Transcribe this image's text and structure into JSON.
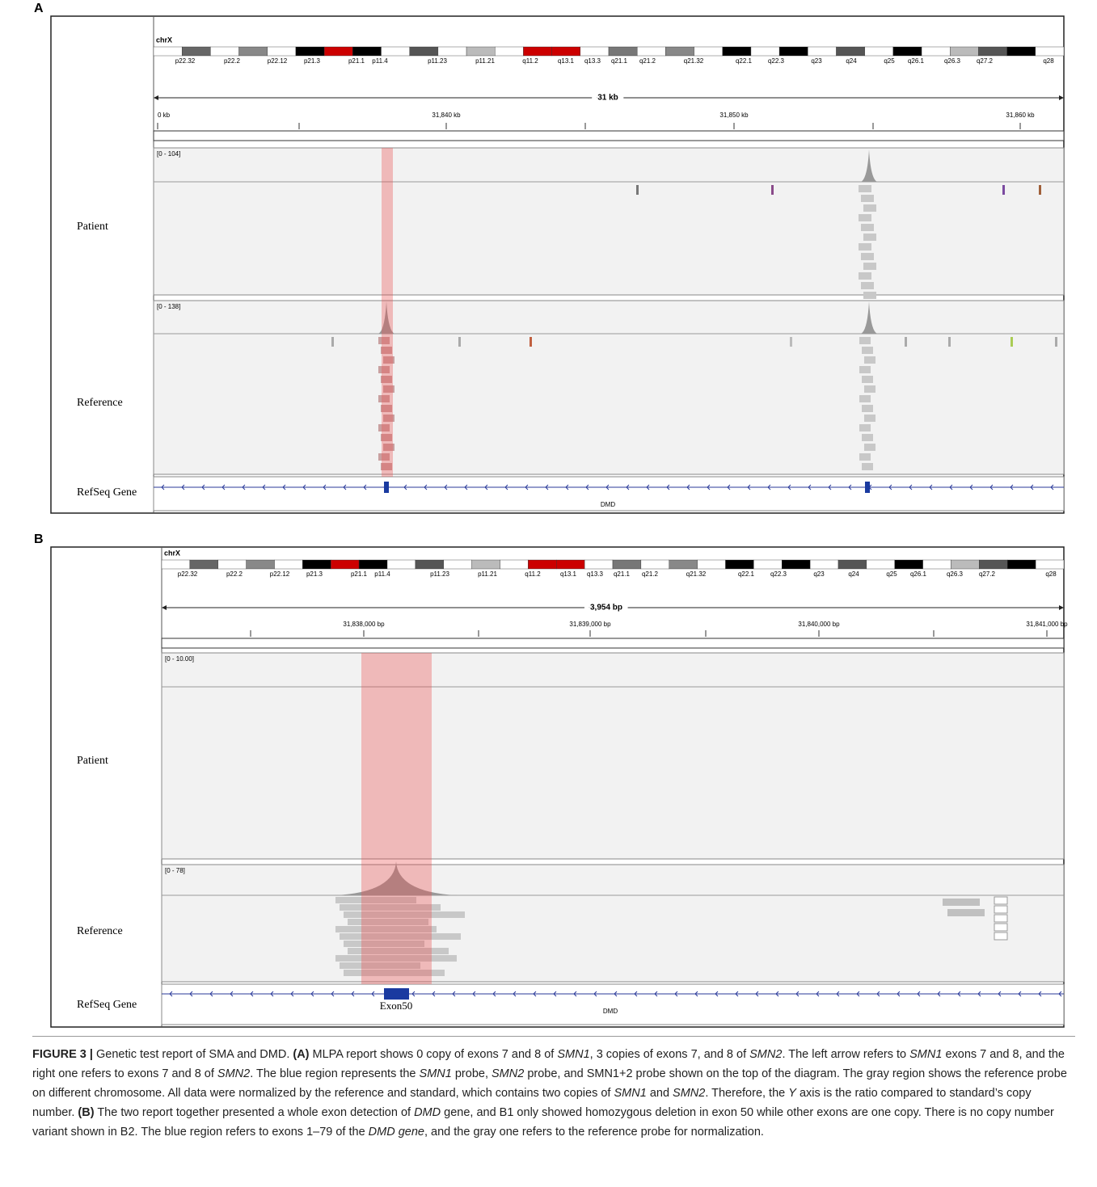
{
  "panels": [
    {
      "label": "A",
      "chromosome": "chrX",
      "bands": [
        "p22.32",
        "p22.2",
        "p22.12",
        "p21.3",
        "p21.1",
        "p11.4",
        "p11.23",
        "p11.21",
        "q11.2",
        "q13.1",
        "q13.3",
        "q21.1",
        "q21.2",
        "q21.32",
        "q22.1",
        "q22.3",
        "q23",
        "q24",
        "q25",
        "q26.1",
        "q26.3",
        "q27.2",
        "q28"
      ],
      "span_label": "31 kb",
      "ruler_labels": [
        "0 kb",
        "31,840 kb",
        "31,850 kb",
        "31,860 kb"
      ],
      "tracks": [
        {
          "name": "Patient",
          "range": "[0 - 104]"
        },
        {
          "name": "Reference",
          "range": "[0 - 138]"
        },
        {
          "name": "RefSeq Gene"
        }
      ],
      "gene": "DMD"
    },
    {
      "label": "B",
      "chromosome": "chrX",
      "bands": [
        "p22.32",
        "p22.2",
        "p22.12",
        "p21.3",
        "p21.1",
        "p11.4",
        "p11.23",
        "p11.21",
        "q11.2",
        "q13.1",
        "q13.3",
        "q21.1",
        "q21.2",
        "q21.32",
        "q22.1",
        "q22.3",
        "q23",
        "q24",
        "q25",
        "q26.1",
        "q26.3",
        "q27.2",
        "q28"
      ],
      "span_label": "3,954 bp",
      "ruler_labels": [
        "31,838,000 bp",
        "31,839,000 bp",
        "31,840,000 bp",
        "31,841,000 bp"
      ],
      "tracks": [
        {
          "name": "Patient",
          "range": "[0 - 10.00]"
        },
        {
          "name": "Reference",
          "range": "[0 - 78]"
        },
        {
          "name": "RefSeq Gene"
        }
      ],
      "gene": "DMD",
      "exon_label": "Exon50"
    }
  ],
  "caption": [
    {
      "text": "FIGURE 3 |",
      "style": "bold"
    },
    {
      "text": " Genetic test report of SMA and DMD. ",
      "style": "normal"
    },
    {
      "text": "(A)",
      "style": "bold"
    },
    {
      "text": " MLPA report shows 0 copy of exons 7 and 8 of ",
      "style": "normal"
    },
    {
      "text": "SMN1",
      "style": "italic"
    },
    {
      "text": ", 3 copies of exons 7, and 8 of ",
      "style": "normal"
    },
    {
      "text": "SMN2",
      "style": "italic"
    },
    {
      "text": ". The left arrow refers to ",
      "style": "normal"
    },
    {
      "text": "SMN1",
      "style": "italic"
    },
    {
      "text": " exons 7 and 8, and the right one refers to exons 7 and 8 of ",
      "style": "normal"
    },
    {
      "text": "SMN2",
      "style": "italic"
    },
    {
      "text": ". The blue region represents the ",
      "style": "normal"
    },
    {
      "text": "SMN1",
      "style": "italic"
    },
    {
      "text": " probe, ",
      "style": "normal"
    },
    {
      "text": "SMN2",
      "style": "italic"
    },
    {
      "text": " probe, and SMN1+2 probe shown on the top of the diagram. The gray region shows the reference probe on different chromosome. All data were normalized by the reference and standard, which contains two copies of ",
      "style": "normal"
    },
    {
      "text": "SMN1",
      "style": "italic"
    },
    {
      "text": " and ",
      "style": "normal"
    },
    {
      "text": "SMN2",
      "style": "italic"
    },
    {
      "text": ". Therefore, the ",
      "style": "normal"
    },
    {
      "text": "Y",
      "style": "italic"
    },
    {
      "text": " axis is the ratio compared to standard’s copy number. ",
      "style": "normal"
    },
    {
      "text": "(B)",
      "style": "bold"
    },
    {
      "text": " The two report together presented a whole exon detection of ",
      "style": "normal"
    },
    {
      "text": "DMD",
      "style": "italic"
    },
    {
      "text": " gene, and B1 only showed homozygous deletion in exon 50 while other exons are one copy. There is no copy number variant shown in B2. The blue region refers to exons 1–79 of the ",
      "style": "normal"
    },
    {
      "text": "DMD gene",
      "style": "italic"
    },
    {
      "text": ", and the gray one refers to the reference probe for normalization.",
      "style": "normal"
    }
  ]
}
